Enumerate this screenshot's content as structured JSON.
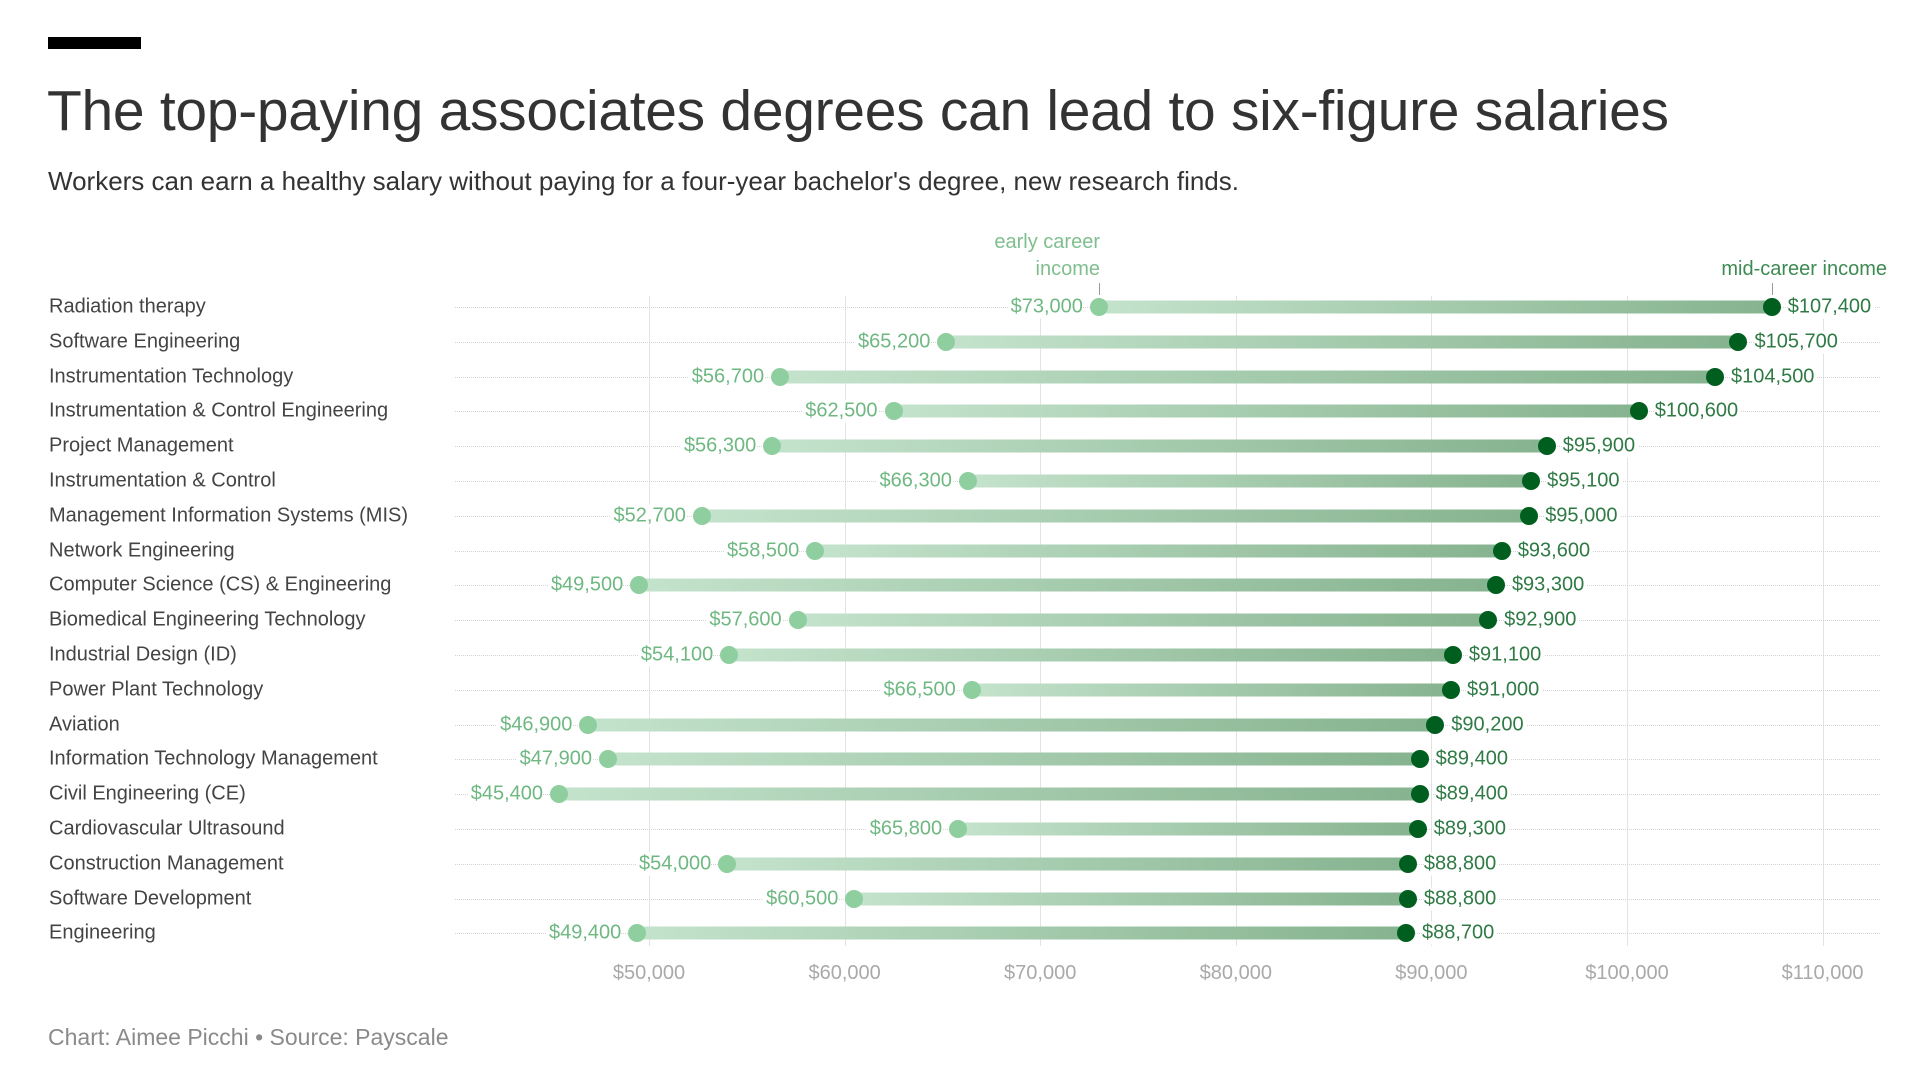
{
  "header": {
    "title": "The top-paying associates degrees can lead to six-figure salaries",
    "subtitle": "Workers can earn a healthy salary without paying for a four-year bachelor's degree, new research finds."
  },
  "annotations": {
    "early_line1": "early career",
    "early_line2": "income",
    "mid": "mid-career income"
  },
  "footer": {
    "credit": "Chart: Aimee Picchi • Source: Payscale"
  },
  "colors": {
    "early_dot": "#8fcf9f",
    "mid_dot": "#005f1e",
    "bar_start": "#c4e3cc",
    "bar_end": "#86b38f",
    "early_text": "#6fb882",
    "mid_text": "#2f7a45"
  },
  "chart_data": {
    "type": "dumbbell",
    "title": "The top-paying associates degrees can lead to six-figure salaries",
    "subtitle": "Workers can earn a healthy salary without paying for a four-year bachelor's degree, new research finds.",
    "xlabel": "",
    "ylabel": "",
    "xlim": [
      40000,
      112000
    ],
    "x_ticks": [
      "$50,000",
      "$60,000",
      "$70,000",
      "$80,000",
      "$90,000",
      "$100,000",
      "$110,000"
    ],
    "x_tick_values": [
      50000,
      60000,
      70000,
      80000,
      90000,
      100000,
      110000
    ],
    "grid": true,
    "legend": [
      "early career income",
      "mid-career income"
    ],
    "categories": [
      "Radiation therapy",
      "Software Engineering",
      "Instrumentation Technology",
      "Instrumentation & Control Engineering",
      "Project Management",
      "Instrumentation & Control",
      "Management Information Systems (MIS)",
      "Network Engineering",
      "Computer Science (CS) & Engineering",
      "Biomedical Engineering Technology",
      "Industrial Design (ID)",
      "Power Plant Technology",
      "Aviation",
      "Information Technology Management",
      "Civil Engineering (CE)",
      "Cardiovascular Ultrasound",
      "Construction Management",
      "Software Development",
      "Engineering"
    ],
    "series": [
      {
        "name": "early career income",
        "values": [
          73000,
          65200,
          56700,
          62500,
          56300,
          66300,
          52700,
          58500,
          49500,
          57600,
          54100,
          66500,
          46900,
          47900,
          45400,
          65800,
          54000,
          60500,
          49400
        ],
        "labels": [
          "$73,000",
          "$65,200",
          "$56,700",
          "$62,500",
          "$56,300",
          "$66,300",
          "$52,700",
          "$58,500",
          "$49,500",
          "$57,600",
          "$54,100",
          "$66,500",
          "$46,900",
          "$47,900",
          "$45,400",
          "$65,800",
          "$54,000",
          "$60,500",
          "$49,400"
        ]
      },
      {
        "name": "mid-career income",
        "values": [
          107400,
          105700,
          104500,
          100600,
          95900,
          95100,
          95000,
          93600,
          93300,
          92900,
          91100,
          91000,
          90200,
          89400,
          89400,
          89300,
          88800,
          88800,
          88700
        ],
        "labels": [
          "$107,400",
          "$105,700",
          "$104,500",
          "$100,600",
          "$95,900",
          "$95,100",
          "$95,000",
          "$93,600",
          "$93,300",
          "$92,900",
          "$91,100",
          "$91,000",
          "$90,200",
          "$89,400",
          "$89,400",
          "$89,300",
          "$88,800",
          "$88,800",
          "$88,700"
        ]
      }
    ]
  }
}
